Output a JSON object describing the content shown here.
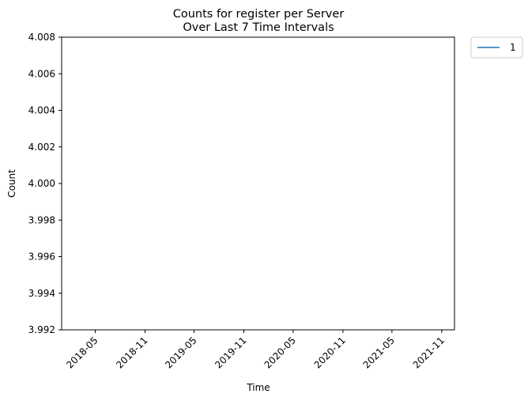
{
  "chart_data": {
    "type": "line",
    "title": "Counts for register per Server",
    "subtitle": "Over Last 7 Time Intervals",
    "xlabel": "Time",
    "ylabel": "Count",
    "ylim": [
      3.992,
      4.008
    ],
    "xlim": [
      "2017-12-28",
      "2021-12-18"
    ],
    "y_ticks": [
      "3.992",
      "3.994",
      "3.996",
      "3.998",
      "4.000",
      "4.002",
      "4.004",
      "4.006",
      "4.008"
    ],
    "x_ticks": [
      "2018-05",
      "2018-11",
      "2019-05",
      "2019-11",
      "2020-05",
      "2020-11",
      "2021-05",
      "2021-11"
    ],
    "grid": false,
    "legend_position": "outside-top-right",
    "series": [
      {
        "name": "1",
        "color": "#1f77b4",
        "x": [],
        "y": []
      }
    ]
  }
}
